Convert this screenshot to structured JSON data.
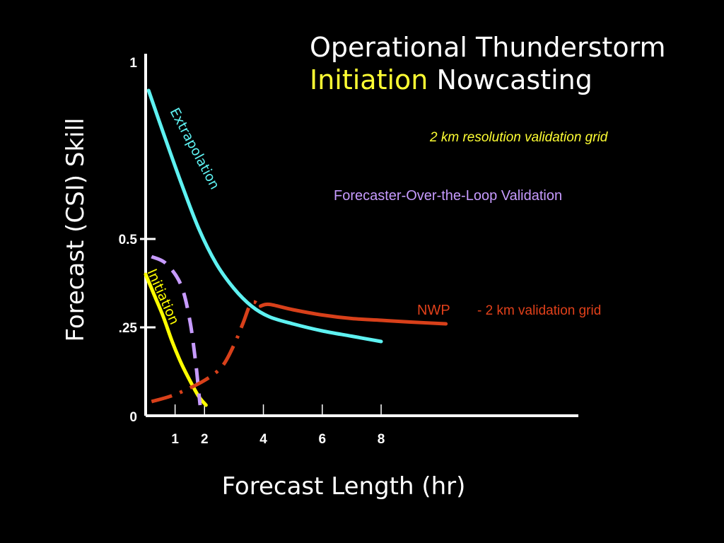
{
  "title": {
    "line1": "Operational Thunderstorm",
    "highlight": "Initiation",
    "rest": "Nowcasting"
  },
  "subtitle": "2 km resolution validation grid",
  "annotations": {
    "fol": "Forecaster-Over-the-Loop Validation",
    "nwp": "NWP",
    "nwp_note": "- 2 km validation grid"
  },
  "colors": {
    "background": "#000000",
    "axis": "#ffffff",
    "extrapolation": "#5ef2f2",
    "initiation": "#ffff00",
    "forecaster": "#c79bff",
    "nwp": "#d8401a",
    "highlight": "#ffff33"
  },
  "chart_data": {
    "type": "line",
    "title": "Operational Thunderstorm Initiation Nowcasting",
    "subtitle": "2 km resolution validation grid",
    "xlabel": "Forecast Length (hr)",
    "ylabel": "Forecast (CSI) Skill",
    "xlim": [
      0,
      14.7
    ],
    "ylim": [
      0,
      1
    ],
    "x_ticks": [
      1,
      2,
      4,
      6,
      8
    ],
    "x_tick_labels": [
      "1",
      "2",
      "4",
      "6",
      "8"
    ],
    "y_ticks": [
      0,
      0.25,
      0.5,
      1
    ],
    "y_tick_labels": [
      "0",
      ".25",
      "0.5",
      "1"
    ],
    "grid": false,
    "series": [
      {
        "name": "Extrapolation",
        "style": "solid",
        "color": "#5ef2f2",
        "x": [
          0.1,
          0.6,
          1.2,
          1.8,
          2.4,
          3.0,
          3.6,
          4.2,
          5.0,
          6.0,
          7.0,
          8.0
        ],
        "y": [
          0.92,
          0.8,
          0.66,
          0.53,
          0.43,
          0.36,
          0.31,
          0.28,
          0.26,
          0.24,
          0.225,
          0.21
        ]
      },
      {
        "name": "Initiation",
        "style": "solid",
        "color": "#ffff00",
        "x": [
          0.0,
          0.3,
          0.6,
          0.9,
          1.2,
          1.5,
          1.8,
          2.05
        ],
        "y": [
          0.4,
          0.34,
          0.28,
          0.21,
          0.15,
          0.1,
          0.055,
          0.03
        ]
      },
      {
        "name": "Forecaster-Over-the-Loop Validation",
        "style": "dashed",
        "color": "#c79bff",
        "x": [
          0.2,
          0.7,
          1.2,
          1.5,
          1.7,
          1.8,
          1.85
        ],
        "y": [
          0.45,
          0.43,
          0.37,
          0.27,
          0.15,
          0.07,
          0.03
        ]
      },
      {
        "name": "NWP",
        "style": "dashdot",
        "color": "#d8401a",
        "x": [
          0.2,
          1.0,
          2.0,
          2.6,
          3.0,
          3.3,
          3.6,
          3.9
        ],
        "y": [
          0.04,
          0.06,
          0.1,
          0.14,
          0.2,
          0.26,
          0.32,
          0.31
        ]
      },
      {
        "name": "NWP",
        "style": "solid",
        "color": "#d8401a",
        "x": [
          3.9,
          4.2,
          5.0,
          6.0,
          7.0,
          8.0,
          9.0,
          10.2
        ],
        "y": [
          0.31,
          0.315,
          0.3,
          0.285,
          0.275,
          0.27,
          0.265,
          0.26
        ]
      }
    ],
    "curve_labels": [
      "Extrapolation",
      "Initiation"
    ]
  }
}
